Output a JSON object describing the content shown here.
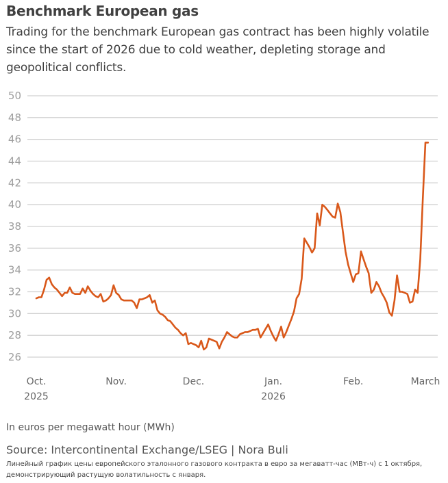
{
  "header": {
    "title": "Benchmark European gas",
    "subtitle": "Trading for the benchmark European gas contract has been highly volatile since the start of 2026 due to cold weather, depleting storage and geopolitical conflicts."
  },
  "footer": {
    "unit_note": "In euros per megawatt hour (MWh)",
    "source": "Source: Intercontinental Exchange/LSEG | Nora Buli",
    "alt_text": "Линейный график цены европейского эталонного газового контракта в евро за мегаватт-час (МВт-ч) с 1 октября, демонстрирующий растущую волатильность с января."
  },
  "colors": {
    "line": "#d9581a",
    "grid": "#d0d0d0"
  },
  "chart_data": {
    "type": "line",
    "title": "Benchmark European gas",
    "xlabel": "",
    "ylabel": "In euros per megawatt hour (MWh)",
    "ylim": [
      26,
      50
    ],
    "yticks": [
      50,
      48,
      46,
      44,
      42,
      40,
      38,
      36,
      34,
      32,
      30,
      28,
      26
    ],
    "grid": true,
    "xlim_days": [
      0,
      153
    ],
    "xticks": [
      {
        "day": 0,
        "label": "Oct.",
        "sublabel": "2025"
      },
      {
        "day": 31,
        "label": "Nov.",
        "sublabel": ""
      },
      {
        "day": 61,
        "label": "Dec.",
        "sublabel": ""
      },
      {
        "day": 92,
        "label": "Jan.",
        "sublabel": "2026"
      },
      {
        "day": 123,
        "label": "Feb.",
        "sublabel": ""
      },
      {
        "day": 151,
        "label": "March",
        "sublabel": ""
      }
    ],
    "x_unit": "days since Oct 1, 2025",
    "series": [
      {
        "name": "Benchmark European gas (EUR/MWh)",
        "x": [
          0,
          1,
          2,
          3,
          4,
          5,
          6,
          7,
          8,
          9,
          10,
          11,
          12,
          13,
          14,
          15,
          16,
          17,
          18,
          19,
          20,
          21,
          22,
          23,
          24,
          25,
          26,
          27,
          28,
          29,
          30,
          31,
          32,
          33,
          34,
          35,
          36,
          37,
          38,
          39,
          40,
          41,
          42,
          43,
          44,
          45,
          46,
          47,
          48,
          49,
          50,
          51,
          52,
          53,
          54,
          55,
          56,
          57,
          58,
          59,
          60,
          61,
          62,
          63,
          64,
          65,
          66,
          67,
          68,
          69,
          70,
          71,
          72,
          73,
          74,
          75,
          76,
          77,
          78,
          79,
          80,
          81,
          82,
          83,
          84,
          85,
          86,
          87,
          88,
          89,
          90,
          91,
          92,
          93,
          94,
          95,
          96,
          97,
          98,
          99,
          100,
          101,
          102,
          103,
          104,
          105,
          106,
          107,
          108,
          109,
          110,
          111,
          112,
          113,
          114,
          115,
          116,
          117,
          118,
          119,
          120,
          121,
          122,
          123,
          124,
          125,
          126,
          127,
          128,
          129,
          130,
          131,
          132,
          133,
          134,
          135,
          136,
          137,
          138,
          139,
          140,
          141,
          142,
          143,
          144,
          145,
          146,
          147,
          148,
          149,
          150,
          151,
          152
        ],
        "values": [
          31.4,
          31.5,
          31.5,
          32.2,
          33.1,
          33.3,
          32.7,
          32.4,
          32.2,
          31.9,
          31.6,
          31.9,
          31.9,
          32.4,
          31.9,
          31.8,
          31.8,
          31.8,
          32.3,
          31.9,
          32.5,
          32.1,
          31.8,
          31.6,
          31.5,
          31.8,
          31.1,
          31.2,
          31.4,
          31.7,
          32.6,
          31.9,
          31.7,
          31.3,
          31.2,
          31.2,
          31.2,
          31.2,
          31.0,
          30.5,
          31.3,
          31.3,
          31.4,
          31.5,
          31.7,
          31.0,
          31.2,
          30.3,
          30.0,
          29.9,
          29.7,
          29.4,
          29.3,
          29.0,
          28.7,
          28.5,
          28.2,
          28.0,
          28.2,
          27.2,
          27.3,
          27.2,
          27.1,
          26.9,
          27.5,
          26.7,
          26.9,
          27.7,
          27.6,
          27.5,
          27.4,
          26.8,
          27.4,
          27.8,
          28.3,
          28.1,
          27.9,
          27.8,
          27.8,
          28.1,
          28.2,
          28.3,
          28.3,
          28.4,
          28.5,
          28.5,
          28.6,
          27.8,
          28.2,
          28.6,
          29.0,
          28.4,
          27.9,
          27.5,
          28.1,
          28.8,
          27.8,
          28.3,
          28.9,
          29.5,
          30.2,
          31.4,
          31.8,
          33.2,
          36.9,
          36.5,
          36.1,
          35.6,
          36.0,
          39.2,
          38.1,
          40.0,
          39.8,
          39.5,
          39.2,
          38.9,
          38.8,
          40.1,
          39.3,
          37.5,
          35.7,
          34.5,
          33.7,
          32.9,
          33.6,
          33.7,
          35.7,
          35.0,
          34.3,
          33.7,
          31.9,
          32.2,
          32.9,
          32.5,
          31.9,
          31.5,
          31.0,
          30.1,
          29.8,
          31.2,
          33.5,
          32.0,
          32.0,
          31.9,
          31.8,
          31.0,
          31.1,
          32.2,
          31.9,
          35.0,
          40.5,
          45.7,
          45.7
        ]
      }
    ]
  }
}
